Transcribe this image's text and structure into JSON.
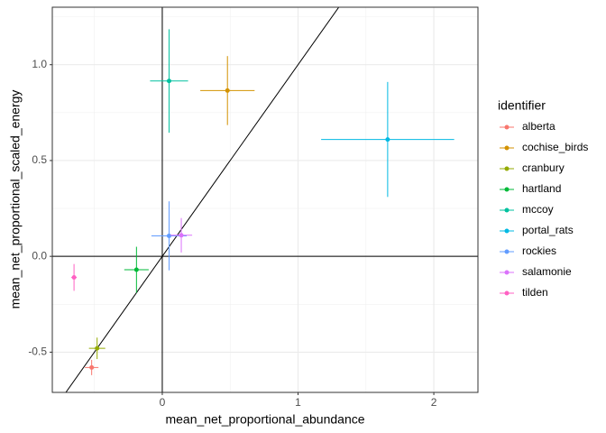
{
  "chart_data": {
    "type": "scatter",
    "x_label": "mean_net_proportional_abundance",
    "y_label": "mean_net_proportional_scaled_energy",
    "legend_title": "identifier",
    "legend": "right",
    "grid": true,
    "xlim": [
      -0.81,
      2.325
    ],
    "xticks": [
      0,
      1,
      2
    ],
    "ylim": [
      -0.71,
      1.3
    ],
    "yticks": [
      {
        "value": -0.5,
        "label": "-0.5"
      },
      {
        "value": 0,
        "label": "0.0"
      },
      {
        "value": 0.5,
        "label": "0.5"
      },
      {
        "value": 1,
        "label": "1.0"
      }
    ],
    "hline": 0,
    "vline": 0,
    "reference_line": {
      "slope": 1,
      "intercept": 0
    },
    "series": [
      {
        "name": "alberta",
        "color": "#F8766D",
        "x": [
          -0.52
        ],
        "values": [
          -0.58
        ],
        "xerr": [
          0.05
        ],
        "yerr": [
          0.04
        ]
      },
      {
        "name": "cochise_birds",
        "color": "#D39200",
        "x": [
          0.48
        ],
        "values": [
          0.865
        ],
        "xerr": [
          0.2
        ],
        "yerr": [
          0.18
        ]
      },
      {
        "name": "cranbury",
        "color": "#93AA00",
        "x": [
          -0.48
        ],
        "values": [
          -0.48
        ],
        "xerr": [
          0.06
        ],
        "yerr": [
          0.056
        ]
      },
      {
        "name": "hartland",
        "color": "#00BA38",
        "x": [
          -0.19
        ],
        "values": [
          -0.07
        ],
        "xerr": [
          0.09
        ],
        "yerr": [
          0.12
        ]
      },
      {
        "name": "mccoy",
        "color": "#00C19F",
        "x": [
          0.05
        ],
        "values": [
          0.915
        ],
        "xerr": [
          0.14
        ],
        "yerr": [
          0.27
        ]
      },
      {
        "name": "portal_rats",
        "color": "#00B9E3",
        "x": [
          1.66
        ],
        "values": [
          0.61
        ],
        "xerr": [
          0.49
        ],
        "yerr": [
          0.3
        ]
      },
      {
        "name": "rockies",
        "color": "#619CFF",
        "x": [
          0.05
        ],
        "values": [
          0.107
        ],
        "xerr": [
          0.13
        ],
        "yerr": [
          0.18
        ]
      },
      {
        "name": "salamonie",
        "color": "#DB72FB",
        "x": [
          0.14
        ],
        "values": [
          0.11
        ],
        "xerr": [
          0.08
        ],
        "yerr": [
          0.09
        ]
      },
      {
        "name": "tilden",
        "color": "#FF61C3",
        "x": [
          -0.65
        ],
        "values": [
          -0.11
        ],
        "xerr": [
          0.02
        ],
        "yerr": [
          0.07
        ]
      }
    ]
  }
}
